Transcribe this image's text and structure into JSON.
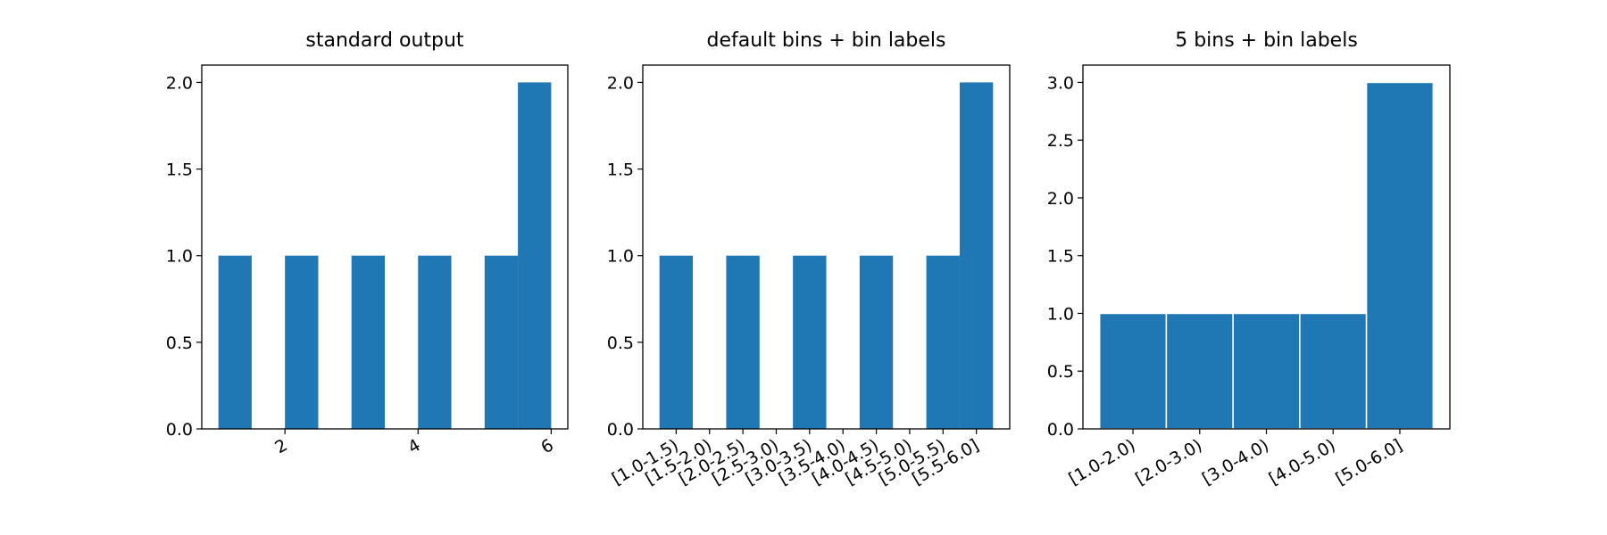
{
  "chart_data": [
    {
      "type": "histogram",
      "title": "standard output",
      "bins": [
        1.0,
        1.5,
        2.0,
        2.5,
        3.0,
        3.5,
        4.0,
        4.5,
        5.0,
        5.5,
        6.0
      ],
      "values": [
        1,
        0,
        1,
        0,
        1,
        0,
        1,
        0,
        1,
        2
      ],
      "color": "#1f77b4",
      "xlim": [
        0.75,
        6.25
      ],
      "xticks": [
        2,
        4,
        6
      ],
      "ylim": [
        0,
        2.1
      ],
      "yticks": [
        {
          "value": 0,
          "label": "0.0"
        },
        {
          "value": 0.5,
          "label": "0.5"
        },
        {
          "value": 1,
          "label": "1.0"
        },
        {
          "value": 1.5,
          "label": "1.5"
        },
        {
          "value": 2,
          "label": "2.0"
        }
      ]
    },
    {
      "type": "histogram",
      "title": "default bins + bin labels",
      "bins": [
        1.0,
        1.5,
        2.0,
        2.5,
        3.0,
        3.5,
        4.0,
        4.5,
        5.0,
        5.5,
        6.0
      ],
      "values": [
        1,
        0,
        1,
        0,
        1,
        0,
        1,
        0,
        1,
        2
      ],
      "color": "#1f77b4",
      "xlim": [
        0.75,
        6.25
      ],
      "xticks": [
        {
          "value": 1.25,
          "label": "[1.0-1.5)"
        },
        {
          "value": 1.75,
          "label": "[1.5-2.0)"
        },
        {
          "value": 2.25,
          "label": "[2.0-2.5)"
        },
        {
          "value": 2.75,
          "label": "[2.5-3.0)"
        },
        {
          "value": 3.25,
          "label": "[3.0-3.5)"
        },
        {
          "value": 3.75,
          "label": "[3.5-4.0)"
        },
        {
          "value": 4.25,
          "label": "[4.0-4.5)"
        },
        {
          "value": 4.75,
          "label": "[4.5-5.0)"
        },
        {
          "value": 5.25,
          "label": "[5.0-5.5)"
        },
        {
          "value": 5.75,
          "label": "[5.5-6.0]"
        }
      ],
      "ylim": [
        0,
        2.1
      ],
      "yticks": [
        {
          "value": 0,
          "label": "0.0"
        },
        {
          "value": 0.5,
          "label": "0.5"
        },
        {
          "value": 1,
          "label": "1.0"
        },
        {
          "value": 1.5,
          "label": "1.5"
        },
        {
          "value": 2,
          "label": "2.0"
        }
      ]
    },
    {
      "type": "histogram",
      "title": "5 bins + bin labels",
      "bins": [
        1.0,
        2.0,
        3.0,
        4.0,
        5.0,
        6.0
      ],
      "values": [
        1,
        1,
        1,
        1,
        3
      ],
      "color": "#1f77b4",
      "edgecolor": "#ffffff",
      "xlim": [
        0.75,
        6.25
      ],
      "xticks": [
        {
          "value": 1.5,
          "label": "[1.0-2.0)"
        },
        {
          "value": 2.5,
          "label": "[2.0-3.0)"
        },
        {
          "value": 3.5,
          "label": "[3.0-4.0)"
        },
        {
          "value": 4.5,
          "label": "[4.0-5.0)"
        },
        {
          "value": 5.5,
          "label": "[5.0-6.0]"
        }
      ],
      "ylim": [
        0,
        3.15
      ],
      "yticks": [
        {
          "value": 0,
          "label": "0.0"
        },
        {
          "value": 0.5,
          "label": "0.5"
        },
        {
          "value": 1,
          "label": "1.0"
        },
        {
          "value": 1.5,
          "label": "1.5"
        },
        {
          "value": 2,
          "label": "2.0"
        },
        {
          "value": 2.5,
          "label": "2.5"
        },
        {
          "value": 3,
          "label": "3.0"
        }
      ]
    }
  ]
}
